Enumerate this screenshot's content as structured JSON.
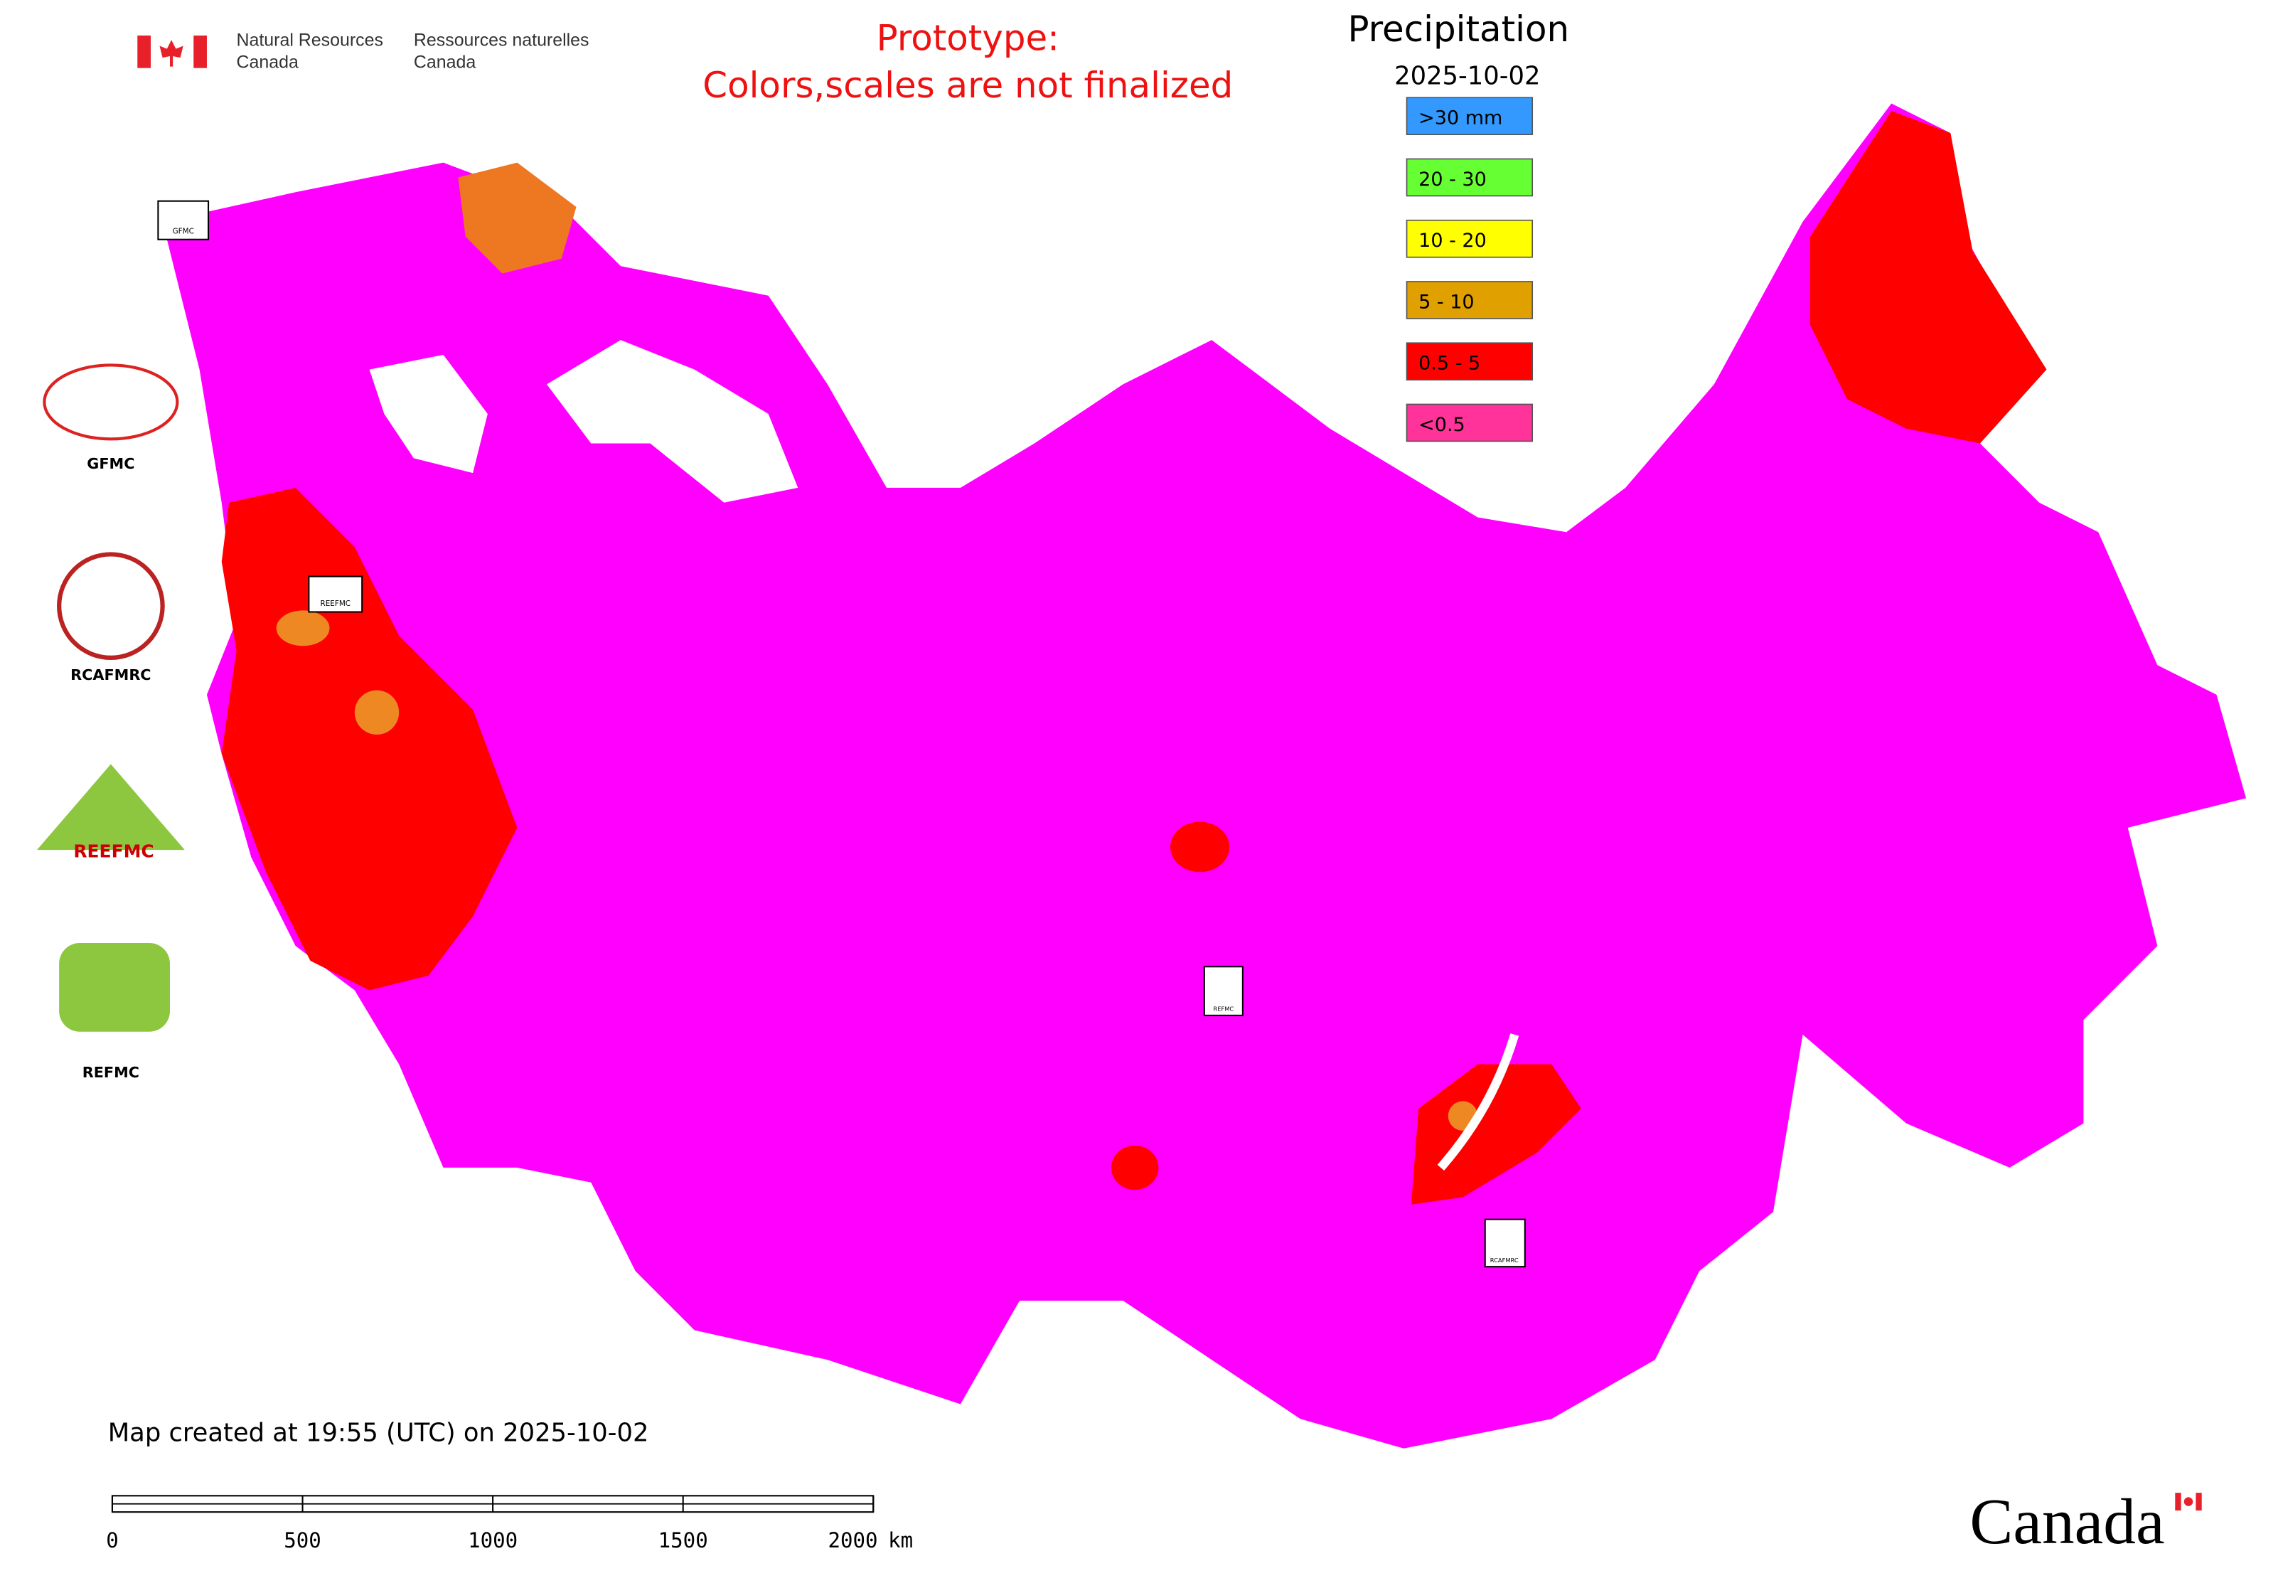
{
  "header": {
    "org_en": [
      "Natural Resources",
      "Canada"
    ],
    "org_fr": [
      "Ressources naturelles",
      "Canada"
    ],
    "notice": [
      "Prototype:",
      "Colors,scales are not finalized"
    ]
  },
  "legend": {
    "title": "Precipitation",
    "date": "2025-10-02",
    "items": [
      {
        "label": ">30 mm",
        "color": "#3399ff"
      },
      {
        "label": "20 - 30",
        "color": "#66ff33"
      },
      {
        "label": "10 - 20",
        "color": "#ffff00"
      },
      {
        "label": "5 - 10",
        "color": "#e0a000"
      },
      {
        "label": "0.5 - 5",
        "color": "#ff0000"
      },
      {
        "label": "<0.5",
        "color": "#ff3399"
      }
    ]
  },
  "logos": [
    "GFMC",
    "RCAFMRC",
    "REEFMC",
    "REFMC"
  ],
  "footer": {
    "created": "Map created at 19:55 (UTC) on 2025-10-02",
    "scale": {
      "ticks": [
        0,
        500,
        1000,
        1500,
        2000
      ],
      "unit": "km"
    },
    "wordmark": "Canada"
  }
}
